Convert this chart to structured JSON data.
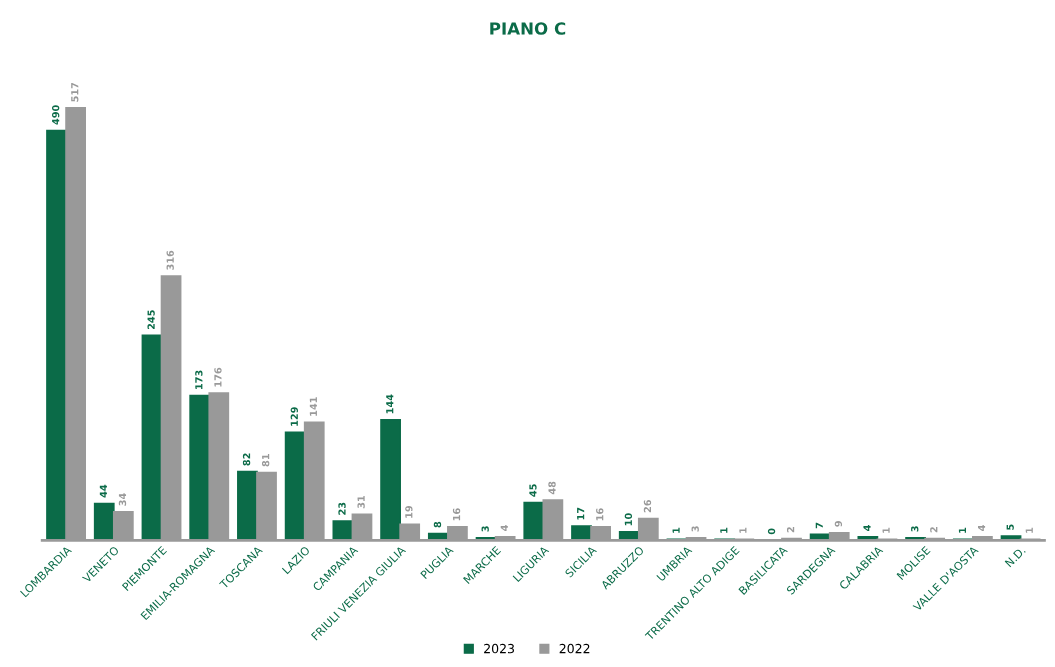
{
  "chart_data": {
    "type": "bar",
    "title": "PIANO C",
    "categories": [
      "LOMBARDIA",
      "VENETO",
      "PIEMONTE",
      "EMILIA-ROMAGNA",
      "TOSCANA",
      "LAZIO",
      "CAMPANIA",
      "FRIULI VENEZIA GIULIA",
      "PUGLIA",
      "MARCHE",
      "LIGURIA",
      "SICILIA",
      "ABRUZZO",
      "UMBRIA",
      "TRENTINO ALTO ADIGE",
      "BASILICATA",
      "SARDEGNA",
      "CALABRIA",
      "MOLISE",
      "VALLE D'AOSTA",
      "N.D."
    ],
    "series": [
      {
        "name": "2023",
        "color": "#0b6b48",
        "values": [
          490,
          44,
          245,
          173,
          82,
          129,
          23,
          144,
          8,
          3,
          45,
          17,
          10,
          1,
          1,
          0,
          7,
          4,
          3,
          1,
          5
        ]
      },
      {
        "name": "2022",
        "color": "#999999",
        "values": [
          517,
          34,
          316,
          176,
          81,
          141,
          31,
          19,
          16,
          4,
          48,
          16,
          26,
          3,
          1,
          2,
          9,
          1,
          2,
          4,
          1
        ]
      }
    ],
    "data_labels": true,
    "legend": "bottom",
    "grid": false
  }
}
